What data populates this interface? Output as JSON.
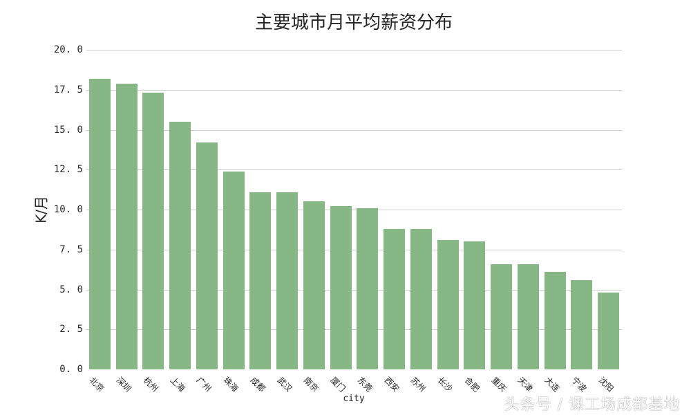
{
  "chart_data": {
    "type": "bar",
    "title": "主要城市月平均薪资分布",
    "xlabel": "city",
    "ylabel": "K/月",
    "ylim": [
      0,
      20
    ],
    "yticks": [
      "0.0",
      "2.5",
      "5.0",
      "7.5",
      "10.0",
      "12.5",
      "15.0",
      "17.5",
      "20.0"
    ],
    "grid": true,
    "bar_color": "#88b786",
    "categories": [
      "北京",
      "深圳",
      "杭州",
      "上海",
      "广州",
      "珠海",
      "成都",
      "武汉",
      "南京",
      "厦门",
      "东莞",
      "西安",
      "苏州",
      "长沙",
      "合肥",
      "重庆",
      "天津",
      "大连",
      "宁波",
      "沈阳"
    ],
    "values": [
      18.2,
      17.9,
      17.3,
      15.5,
      14.2,
      12.4,
      11.1,
      11.1,
      10.5,
      10.2,
      10.1,
      8.8,
      8.8,
      8.1,
      8.0,
      6.6,
      6.6,
      6.1,
      5.6,
      4.8
    ]
  },
  "watermark": "头条号 / 课工场成都基地"
}
